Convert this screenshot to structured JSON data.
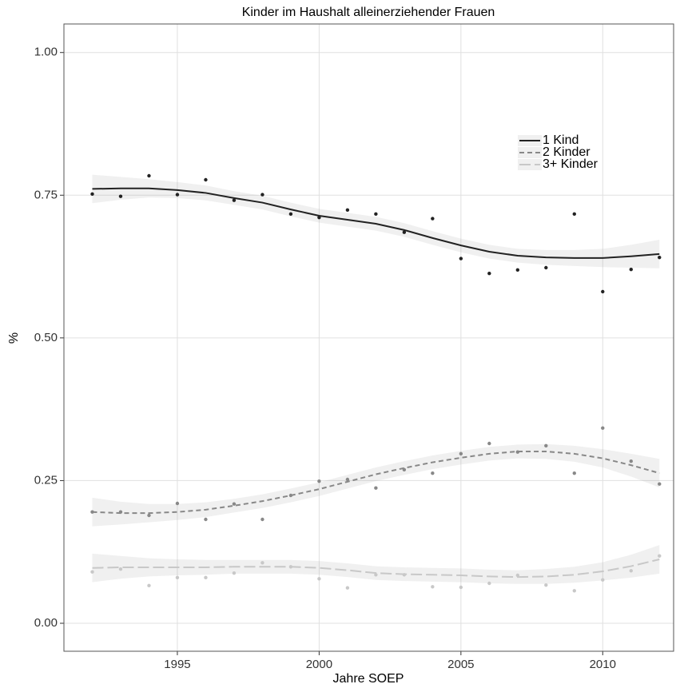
{
  "chart_data": {
    "type": "scatter-smooth",
    "title": "Kinder im Haushalt alleinerziehender Frauen",
    "xlabel": "Jahre SOEP",
    "ylabel": "%",
    "x": [
      1992,
      1993,
      1994,
      1995,
      1996,
      1997,
      1998,
      1999,
      2000,
      2001,
      2002,
      2003,
      2004,
      2005,
      2006,
      2007,
      2008,
      2009,
      2010,
      2011,
      2012
    ],
    "xlim": [
      1991.0,
      2012.5
    ],
    "xticks": [
      1995,
      2000,
      2005,
      2010
    ],
    "ylim": [
      -0.049,
      1.05
    ],
    "yticks": [
      {
        "value": 0,
        "label": "0.00"
      },
      {
        "value": 0.25,
        "label": "0.25"
      },
      {
        "value": 0.5,
        "label": "0.50"
      },
      {
        "value": 0.75,
        "label": "0.75"
      },
      {
        "value": 1,
        "label": "1.00"
      }
    ],
    "grid": true,
    "legend": "upper right",
    "series": [
      {
        "name": "1 Kind",
        "color": "#222222",
        "dash": "none",
        "values": [
          0.752,
          0.748,
          0.784,
          0.751,
          0.777,
          0.741,
          0.751,
          0.717,
          0.711,
          0.724,
          0.717,
          0.685,
          0.709,
          0.639,
          0.613,
          0.619,
          0.623,
          0.717,
          0.581,
          0.62,
          0.641
        ],
        "fit": [
          0.761,
          0.762,
          0.762,
          0.759,
          0.754,
          0.745,
          0.737,
          0.725,
          0.714,
          0.707,
          0.7,
          0.689,
          0.675,
          0.662,
          0.651,
          0.644,
          0.641,
          0.64,
          0.64,
          0.643,
          0.647
        ],
        "ci": [
          0.025,
          0.02,
          0.016,
          0.014,
          0.013,
          0.012,
          0.012,
          0.012,
          0.012,
          0.012,
          0.012,
          0.012,
          0.012,
          0.012,
          0.012,
          0.012,
          0.013,
          0.014,
          0.016,
          0.02,
          0.025
        ]
      },
      {
        "name": "2 Kinder",
        "color": "#888888",
        "dash": "6 4",
        "values": [
          0.195,
          0.195,
          0.189,
          0.21,
          0.182,
          0.209,
          0.182,
          0.224,
          0.249,
          0.252,
          0.237,
          0.269,
          0.263,
          0.297,
          0.315,
          0.3,
          0.311,
          0.263,
          0.342,
          0.284,
          0.244
        ],
        "fit": [
          0.195,
          0.193,
          0.193,
          0.195,
          0.199,
          0.206,
          0.214,
          0.224,
          0.235,
          0.248,
          0.261,
          0.272,
          0.282,
          0.29,
          0.297,
          0.301,
          0.301,
          0.297,
          0.289,
          0.277,
          0.263
        ],
        "ci": [
          0.025,
          0.02,
          0.016,
          0.014,
          0.013,
          0.012,
          0.012,
          0.012,
          0.012,
          0.012,
          0.012,
          0.012,
          0.012,
          0.012,
          0.012,
          0.012,
          0.013,
          0.014,
          0.016,
          0.02,
          0.025
        ]
      },
      {
        "name": "3+ Kinder",
        "color": "#c8c8c8",
        "dash": "14 5",
        "values": [
          0.09,
          0.095,
          0.066,
          0.08,
          0.08,
          0.088,
          0.106,
          0.099,
          0.078,
          0.062,
          0.085,
          0.085,
          0.064,
          0.063,
          0.07,
          0.084,
          0.067,
          0.057,
          0.076,
          0.092,
          0.118
        ],
        "fit": [
          0.097,
          0.098,
          0.098,
          0.098,
          0.098,
          0.099,
          0.099,
          0.099,
          0.097,
          0.093,
          0.088,
          0.086,
          0.085,
          0.084,
          0.082,
          0.081,
          0.082,
          0.085,
          0.091,
          0.1,
          0.112
        ],
        "ci": [
          0.025,
          0.02,
          0.016,
          0.014,
          0.013,
          0.012,
          0.012,
          0.012,
          0.012,
          0.012,
          0.012,
          0.012,
          0.012,
          0.012,
          0.012,
          0.012,
          0.013,
          0.014,
          0.016,
          0.02,
          0.025
        ]
      }
    ]
  }
}
